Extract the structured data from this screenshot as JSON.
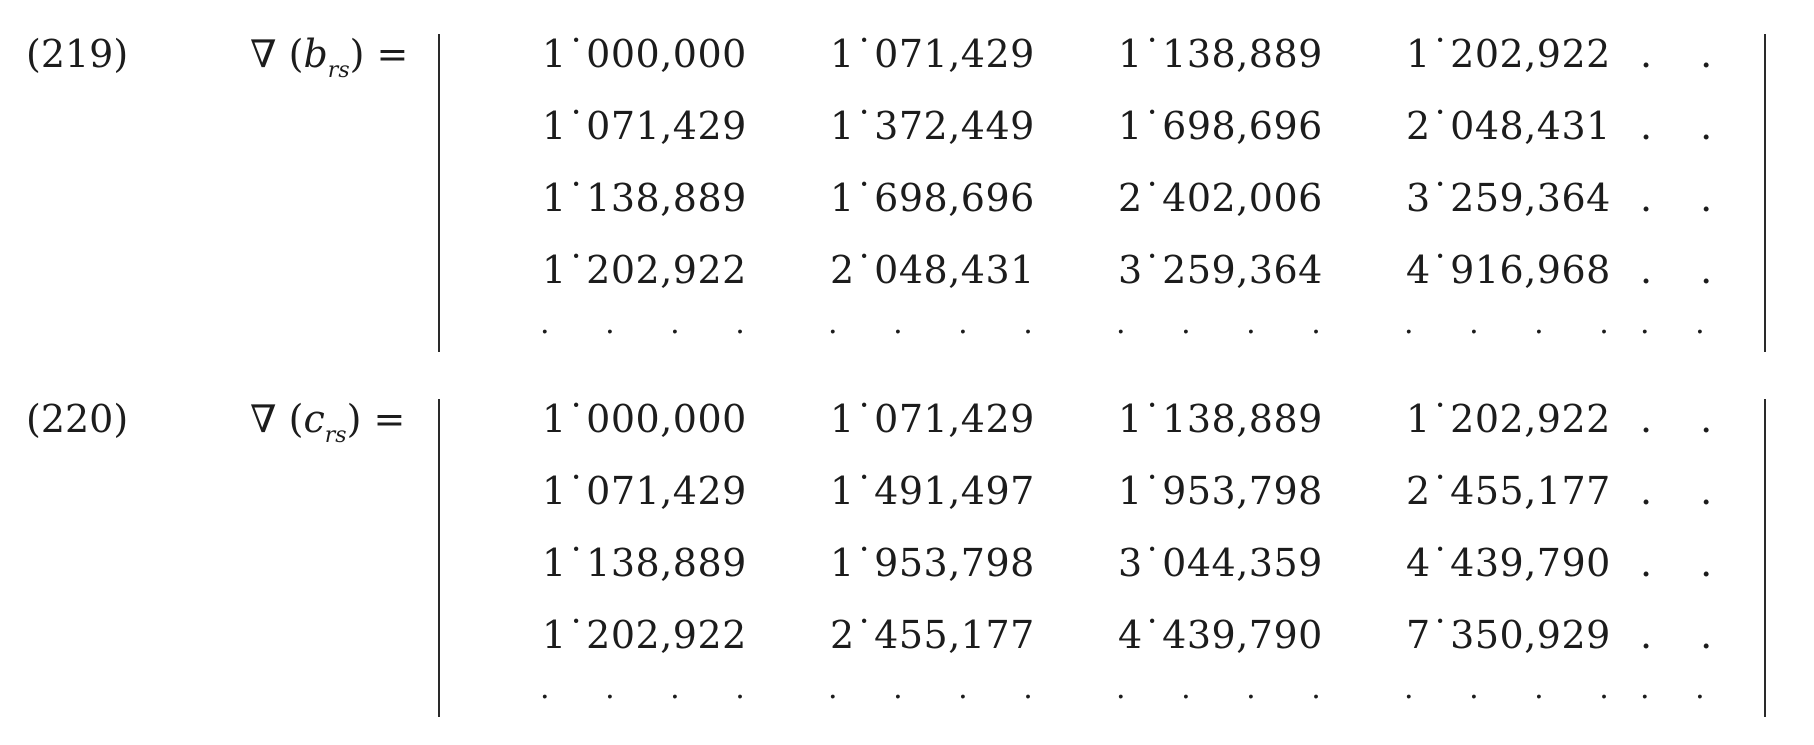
{
  "equations": [
    {
      "number": "(219)",
      "lhs": {
        "symbol": "∇",
        "open": "(",
        "var": "b",
        "sub": "rs",
        "close": ")",
        "eq": "="
      },
      "rows": [
        [
          "1˙000,000",
          "1˙071,429",
          "1˙138,889",
          "1˙202,922"
        ],
        [
          "1˙071,429",
          "1˙372,449",
          "1˙698,696",
          "2˙048,431"
        ],
        [
          "1˙138,889",
          "1˙698,696",
          "2˙402,006",
          "3˙259,364"
        ],
        [
          "1˙202,922",
          "2˙048,431",
          "3˙259,364",
          "4˙916,968"
        ]
      ],
      "row_tail": ". .",
      "dot_cell": ". . . .",
      "dot_tail": ". ."
    },
    {
      "number": "(220)",
      "lhs": {
        "symbol": "∇",
        "open": "(",
        "var": "c",
        "sub": "rs",
        "close": ")",
        "eq": "="
      },
      "rows": [
        [
          "1˙000,000",
          "1˙071,429",
          "1˙138,889",
          "1˙202,922"
        ],
        [
          "1˙071,429",
          "1˙491,497",
          "1˙953,798",
          "2˙455,177"
        ],
        [
          "1˙138,889",
          "1˙953,798",
          "3˙044,359",
          "4˙439,790"
        ],
        [
          "1˙202,922",
          "2˙455,177",
          "4˙439,790",
          "7˙350,929"
        ]
      ],
      "row_tail": ". .",
      "dot_cell": ". . . .",
      "dot_tail": ". ."
    }
  ]
}
